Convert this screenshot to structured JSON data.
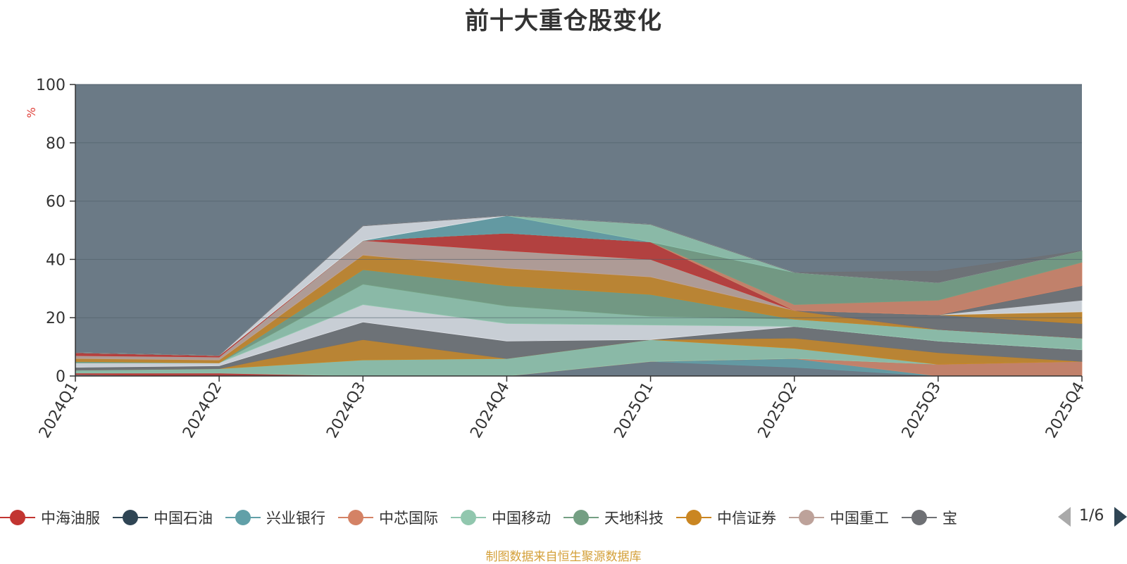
{
  "colors": {
    "plot_background": "#6b7a86",
    "axis": "#333333",
    "unit_label": "#e0403a",
    "source_text": "#d4a03a",
    "pager_active": "#2f4554",
    "pager_inactive": "#aaaaaa"
  },
  "legend": {
    "items": [
      {
        "label": "中海油服",
        "color": "#c23531"
      },
      {
        "label": "中国石油",
        "color": "#2f4554"
      },
      {
        "label": "兴业银行",
        "color": "#61a0a8"
      },
      {
        "label": "中芯国际",
        "color": "#d48265"
      },
      {
        "label": "中国移动",
        "color": "#91c7ae"
      },
      {
        "label": "天地科技",
        "color": "#749f83"
      },
      {
        "label": "中信证券",
        "color": "#ca8622"
      },
      {
        "label": "中国重工",
        "color": "#bda29a"
      },
      {
        "label": "宝",
        "color": "#6e7074"
      }
    ],
    "page_indicator": "1/6",
    "prev_icon": "triangle-left-icon",
    "next_icon": "triangle-right-icon"
  },
  "source": "制图数据来自恒生聚源数据库",
  "chart_data": {
    "type": "area",
    "stacked": true,
    "title": "前十大重仓股变化",
    "ylabel": "%",
    "xlabel": "",
    "categories": [
      "2024Q1",
      "2024Q2",
      "2024Q3",
      "2024Q4",
      "2025Q1",
      "2025Q2",
      "2025Q3",
      "2025Q4"
    ],
    "ylim": [
      0,
      100
    ],
    "yticks": [
      0,
      20,
      40,
      60,
      80,
      100
    ],
    "grid": true,
    "legend_position": "bottom",
    "series": [
      {
        "color": "#6b7a86",
        "values": [
          0.5,
          0,
          0,
          0,
          5,
          3,
          0,
          0
        ]
      },
      {
        "color": "#61a0a8",
        "values": [
          0,
          0,
          0,
          0,
          0,
          3,
          0,
          0
        ]
      },
      {
        "color": "#d48265",
        "values": [
          0,
          0,
          0,
          0,
          0,
          0,
          4,
          5
        ]
      },
      {
        "color": "#c23531",
        "values": [
          0.5,
          1,
          0,
          0,
          0,
          0,
          0,
          0
        ]
      },
      {
        "color": "#91c7ae",
        "values": [
          1,
          1.5,
          5.5,
          6,
          7.5,
          3.5,
          0,
          0
        ]
      },
      {
        "color": "#ca8622",
        "values": [
          0,
          0,
          7,
          0,
          0,
          3.5,
          4,
          0
        ]
      },
      {
        "color": "#6e7074",
        "values": [
          1,
          1,
          6,
          6,
          0,
          4,
          4,
          4
        ]
      },
      {
        "color": "#dde1e7",
        "values": [
          1.5,
          1,
          6,
          6,
          5,
          0,
          0,
          0
        ]
      },
      {
        "color": "#91c7ae",
        "values": [
          0,
          0,
          7,
          6,
          3,
          2.5,
          4,
          4
        ]
      },
      {
        "color": "#749f83",
        "values": [
          0.5,
          0,
          5,
          7,
          7.5,
          0,
          0,
          0
        ]
      },
      {
        "color": "#ca8622",
        "values": [
          1,
          1,
          5,
          6,
          6,
          3,
          0,
          0
        ]
      },
      {
        "color": "#bda29a",
        "values": [
          1,
          1,
          5,
          6,
          6,
          0,
          0,
          0
        ]
      },
      {
        "color": "#c23531",
        "values": [
          1,
          0.5,
          0,
          6,
          6,
          0,
          0,
          0
        ]
      },
      {
        "color": "#6e7074",
        "values": [
          0,
          0,
          0,
          0,
          0,
          0,
          5,
          5
        ]
      },
      {
        "color": "#ca8622",
        "values": [
          0,
          0,
          0,
          0,
          0,
          0,
          0,
          4
        ]
      },
      {
        "color": "#dde1e7",
        "values": [
          0,
          0,
          0,
          0,
          0,
          0,
          0,
          4
        ]
      },
      {
        "color": "#6e7074",
        "values": [
          0,
          0,
          0,
          0,
          0,
          0,
          0,
          5
        ]
      },
      {
        "color": "#d48265",
        "values": [
          0,
          0,
          0,
          0,
          0,
          2,
          5,
          8
        ]
      },
      {
        "color": "#749f83",
        "values": [
          0,
          0,
          0,
          0,
          0,
          11,
          6,
          4
        ]
      },
      {
        "color": "#61a0a8",
        "values": [
          0,
          0,
          0,
          6,
          0,
          0,
          0,
          0
        ]
      },
      {
        "color": "#91c7ae",
        "values": [
          0,
          0,
          0,
          0,
          6,
          0,
          0,
          0
        ]
      },
      {
        "color": "#dde1e7",
        "values": [
          0,
          0,
          5,
          0,
          0,
          0,
          0,
          0
        ]
      },
      {
        "color": "#6e7074",
        "values": [
          0,
          0,
          0,
          0,
          0,
          0,
          4,
          0
        ]
      }
    ]
  }
}
